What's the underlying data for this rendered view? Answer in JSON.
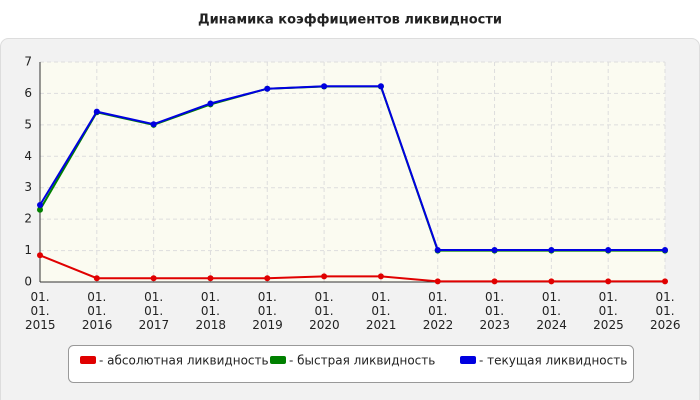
{
  "chart_data": {
    "type": "line",
    "title": "Динамика коэффициентов ликвидности",
    "categories": [
      "01. 01. 2015",
      "01. 01. 2016",
      "01. 01. 2017",
      "01. 01. 2018",
      "01. 01. 2019",
      "01. 01. 2020",
      "01. 01. 2021",
      "01. 01. 2022",
      "01. 01. 2023",
      "01. 01. 2024",
      "01. 01. 2025",
      "01. 01. 2026"
    ],
    "series": [
      {
        "name": "- абсолютная ликвидность",
        "color": "#e00000",
        "values": [
          0.85,
          0.12,
          0.12,
          0.12,
          0.12,
          0.18,
          0.18,
          0.02,
          0.02,
          0.02,
          0.02,
          0.02
        ]
      },
      {
        "name": "- быстрая ликвидность",
        "color": "#008000",
        "values": [
          2.3,
          5.4,
          5.0,
          5.65,
          6.15,
          6.22,
          6.22,
          1.0,
          1.0,
          1.0,
          1.0,
          1.0
        ]
      },
      {
        "name": "- текущая ликвидность",
        "color": "#0000e0",
        "values": [
          2.45,
          5.42,
          5.02,
          5.68,
          6.15,
          6.23,
          6.23,
          1.02,
          1.02,
          1.02,
          1.02,
          1.02
        ]
      }
    ],
    "ylim": [
      0,
      7
    ],
    "yticks": [
      0,
      1,
      2,
      3,
      4,
      5,
      6,
      7
    ],
    "grid": true
  }
}
